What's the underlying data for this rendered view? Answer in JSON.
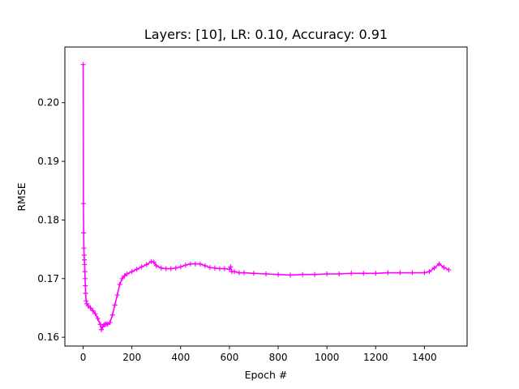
{
  "chart_data": {
    "type": "line",
    "title": "Layers: [10], LR: 0.10, Accuracy: 0.91",
    "xlabel": "Epoch #",
    "ylabel": "RMSE",
    "xlim": [
      -75,
      1575
    ],
    "ylim": [
      0.1585,
      0.2095
    ],
    "grid": false,
    "x_ticks": [
      0,
      200,
      400,
      600,
      800,
      1000,
      1200,
      1400
    ],
    "x_tick_labels": [
      "0",
      "200",
      "400",
      "600",
      "800",
      "1000",
      "1200",
      "1400"
    ],
    "y_ticks": [
      0.16,
      0.17,
      0.18,
      0.19,
      0.2
    ],
    "y_tick_labels": [
      "0.16",
      "0.17",
      "0.18",
      "0.19",
      "0.20"
    ],
    "series": [
      {
        "color": "#ff00ff",
        "marker": "plus",
        "x": [
          0,
          1,
          2,
          3,
          4,
          5,
          6,
          7,
          8,
          9,
          10,
          12,
          15,
          20,
          30,
          40,
          50,
          60,
          70,
          75,
          80,
          85,
          90,
          95,
          100,
          110,
          120,
          130,
          140,
          150,
          160,
          170,
          180,
          200,
          220,
          240,
          260,
          280,
          290,
          300,
          320,
          340,
          360,
          380,
          400,
          420,
          440,
          460,
          480,
          500,
          520,
          540,
          560,
          580,
          600,
          605,
          610,
          620,
          640,
          660,
          700,
          750,
          800,
          850,
          900,
          950,
          1000,
          1050,
          1100,
          1150,
          1200,
          1250,
          1300,
          1350,
          1400,
          1420,
          1440,
          1460,
          1480,
          1500
        ],
        "y": [
          0.2065,
          0.1828,
          0.1778,
          0.1752,
          0.174,
          0.1732,
          0.1724,
          0.1712,
          0.17,
          0.1688,
          0.1675,
          0.1662,
          0.1657,
          0.1654,
          0.165,
          0.1645,
          0.164,
          0.1632,
          0.1622,
          0.1613,
          0.1618,
          0.1621,
          0.1622,
          0.1623,
          0.1622,
          0.1625,
          0.1638,
          0.1655,
          0.1672,
          0.169,
          0.17,
          0.1705,
          0.1708,
          0.1712,
          0.1716,
          0.172,
          0.1724,
          0.1729,
          0.1728,
          0.1722,
          0.1718,
          0.1717,
          0.1717,
          0.1718,
          0.172,
          0.1723,
          0.1725,
          0.1725,
          0.1725,
          0.1722,
          0.1719,
          0.1718,
          0.1717,
          0.1717,
          0.1716,
          0.172,
          0.1712,
          0.1712,
          0.171,
          0.171,
          0.1709,
          0.1708,
          0.1707,
          0.1706,
          0.1707,
          0.1707,
          0.1708,
          0.1708,
          0.1709,
          0.1709,
          0.1709,
          0.171,
          0.171,
          0.171,
          0.171,
          0.1712,
          0.1718,
          0.1725,
          0.1719,
          0.1715
        ]
      }
    ]
  }
}
